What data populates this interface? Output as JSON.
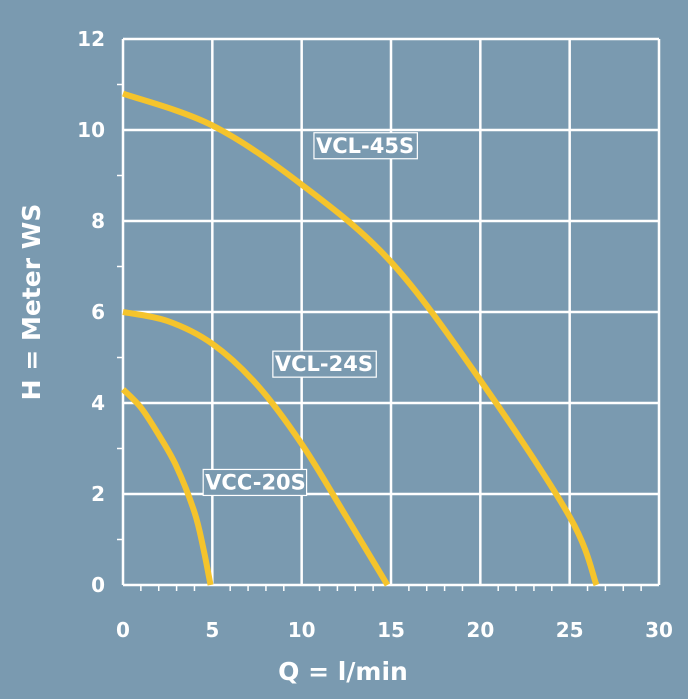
{
  "chart_data": {
    "type": "line",
    "title": "",
    "xlabel": "Q = l/min",
    "ylabel": "H = Meter WS",
    "xlim": [
      0,
      30
    ],
    "ylim": [
      0,
      12
    ],
    "x_ticks": [
      "0",
      "5",
      "10",
      "15",
      "20",
      "25",
      "30"
    ],
    "y_ticks": [
      "0",
      "2",
      "4",
      "6",
      "8",
      "10",
      "12"
    ],
    "grid": true,
    "series": [
      {
        "name": "VCL-45S",
        "color": "#f5c42c",
        "x": [
          0,
          5,
          10,
          15,
          20,
          25,
          26.5
        ],
        "y": [
          10.8,
          10.1,
          8.8,
          7.1,
          4.5,
          1.5,
          0
        ]
      },
      {
        "name": "VCL-24S",
        "color": "#f5c42c",
        "x": [
          0,
          2.5,
          5,
          7.5,
          10,
          12.5,
          14.8
        ],
        "y": [
          6.0,
          5.8,
          5.3,
          4.4,
          3.1,
          1.5,
          0
        ]
      },
      {
        "name": "VCC-20S",
        "color": "#f5c42c",
        "x": [
          0,
          1,
          2,
          3,
          4,
          4.5,
          4.9
        ],
        "y": [
          4.3,
          3.9,
          3.3,
          2.6,
          1.6,
          0.8,
          0
        ]
      }
    ]
  }
}
